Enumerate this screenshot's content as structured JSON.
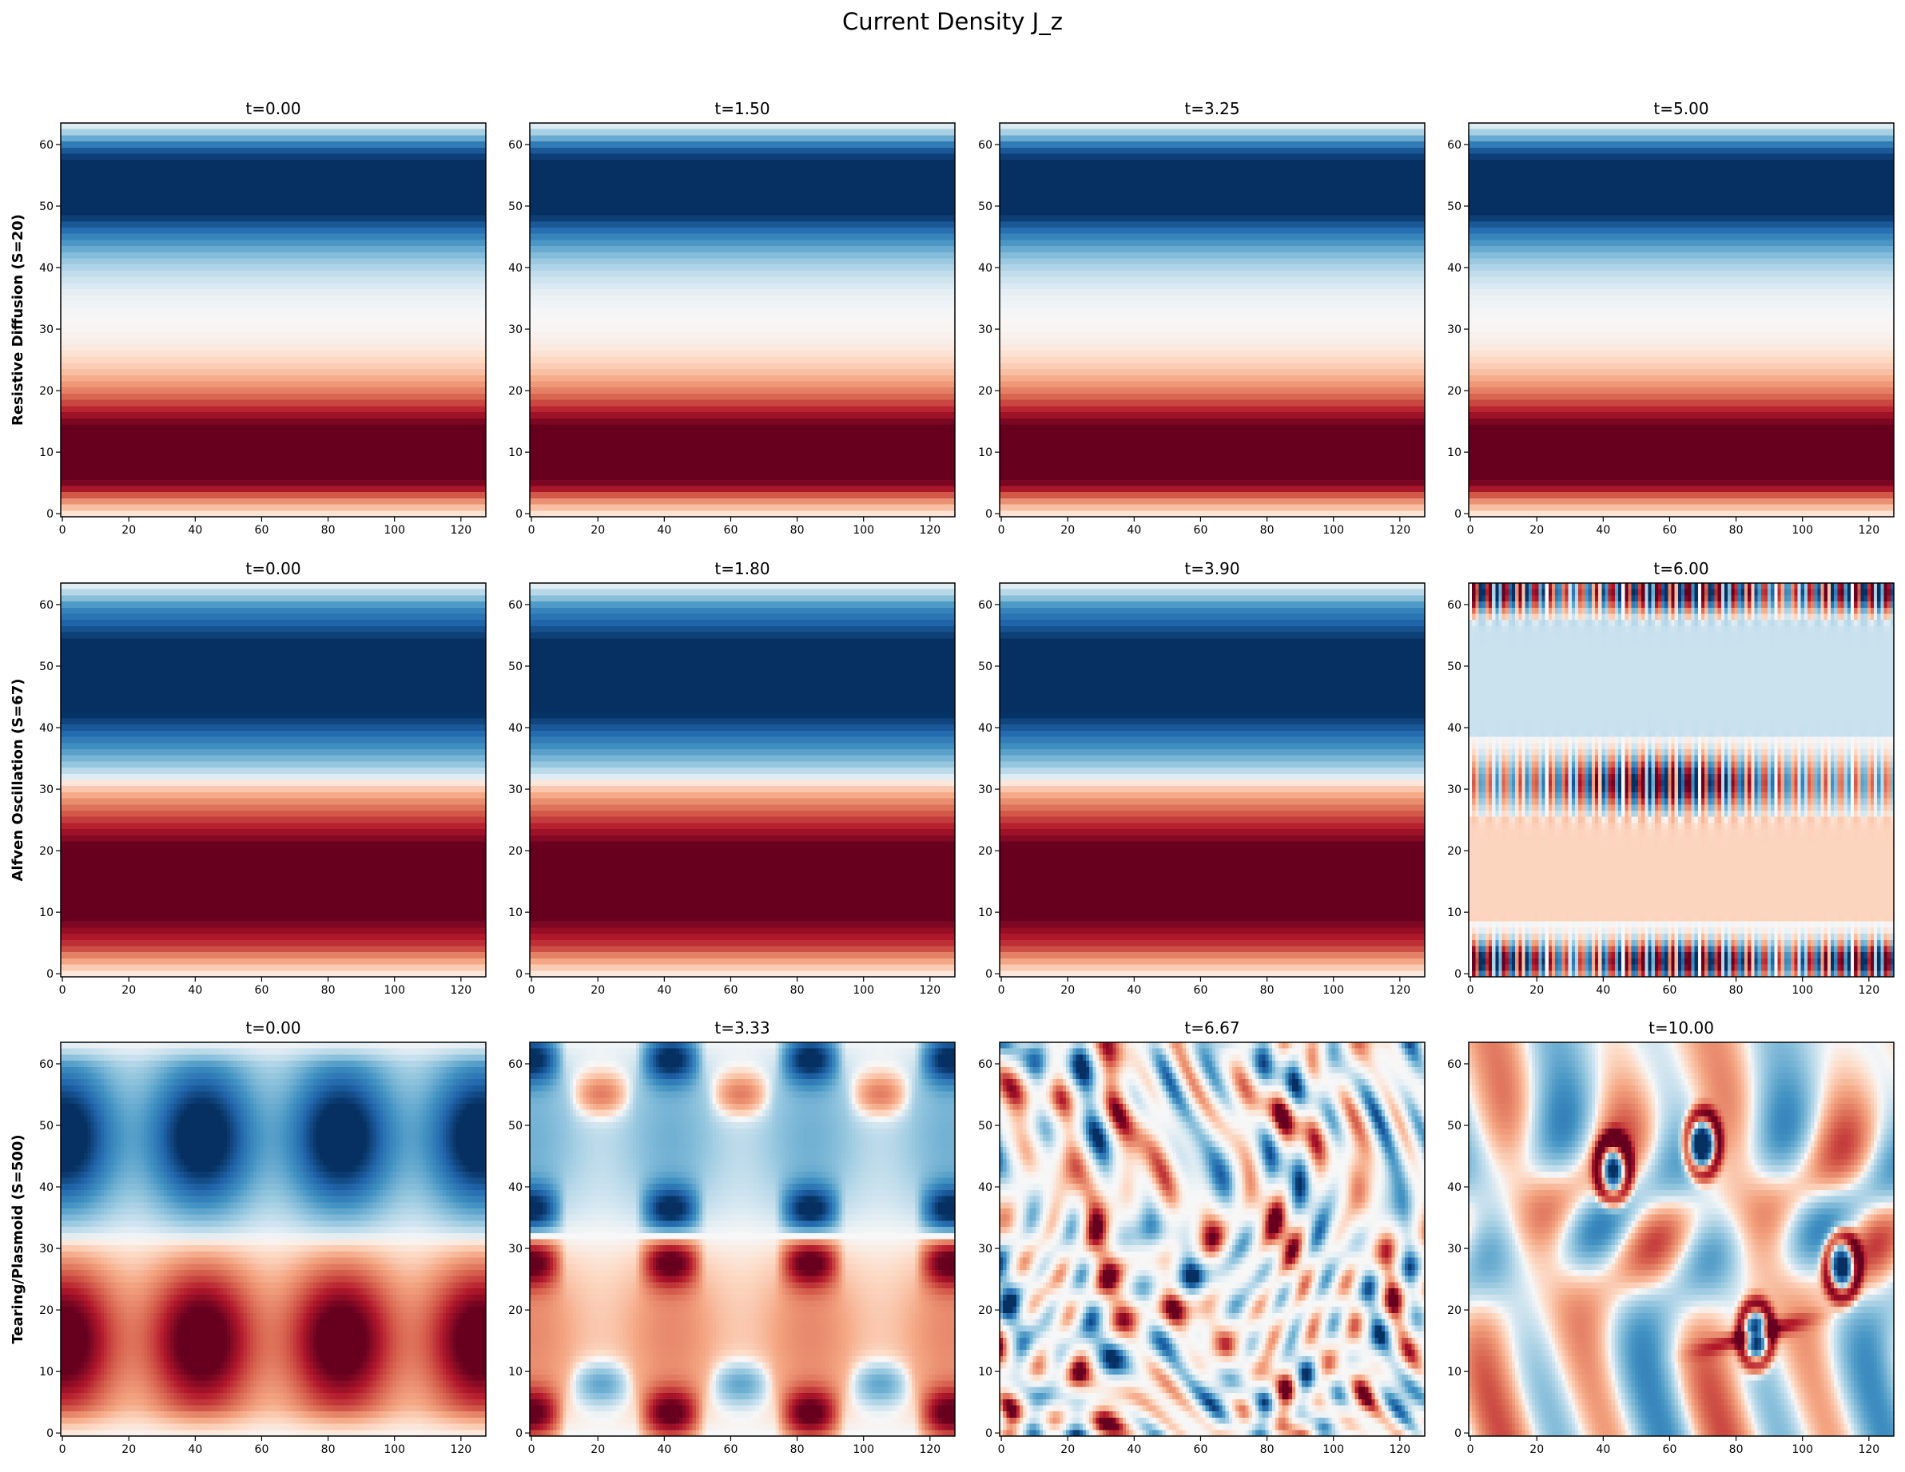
{
  "figure": {
    "title": "Current Density J_z",
    "colormap": "RdBu_r"
  },
  "rows": [
    {
      "label": "Resistive Diffusion (S=20)",
      "times": [
        "t=0.00",
        "t=1.50",
        "t=3.25",
        "t=5.00"
      ]
    },
    {
      "label": "Alfven Oscillation (S=67)",
      "times": [
        "t=0.00",
        "t=1.80",
        "t=3.90",
        "t=6.00"
      ]
    },
    {
      "label": "Tearing/Plasmoid (S=500)",
      "times": [
        "t=0.00",
        "t=3.33",
        "t=6.67",
        "t=10.00"
      ]
    }
  ],
  "chart_data": {
    "type": "heatmap",
    "title": "Current Density J_z",
    "grid": {
      "nx": 128,
      "ny": 64
    },
    "xlim": [
      0,
      127
    ],
    "ylim": [
      0,
      63
    ],
    "x_ticks": [
      "0",
      "20",
      "40",
      "60",
      "80",
      "100",
      "120"
    ],
    "y_ticks": [
      "0",
      "10",
      "20",
      "30",
      "40",
      "50",
      "60"
    ],
    "colormap": "RdBu_r",
    "panels": [
      {
        "row": 0,
        "col": 0,
        "time": "t=0.00",
        "pattern": "double-sheet",
        "red_center_y": 10,
        "blue_center_y": 53,
        "neutral_y": 32
      },
      {
        "row": 0,
        "col": 1,
        "time": "t=1.50",
        "pattern": "double-sheet",
        "red_center_y": 10,
        "blue_center_y": 53,
        "neutral_y": 31
      },
      {
        "row": 0,
        "col": 2,
        "time": "t=3.25",
        "pattern": "double-sheet",
        "red_center_y": 10,
        "blue_center_y": 53,
        "neutral_y": 33
      },
      {
        "row": 0,
        "col": 3,
        "time": "t=5.00",
        "pattern": "double-sheet",
        "red_center_y": 10,
        "blue_center_y": 53,
        "neutral_y": 33
      },
      {
        "row": 1,
        "col": 0,
        "time": "t=0.00",
        "pattern": "double-sheet",
        "red_center_y": 15,
        "blue_center_y": 48,
        "neutral_y": 32
      },
      {
        "row": 1,
        "col": 1,
        "time": "t=1.80",
        "pattern": "double-sheet",
        "red_center_y": 15,
        "blue_center_y": 48,
        "neutral_y": 32
      },
      {
        "row": 1,
        "col": 2,
        "time": "t=3.90",
        "pattern": "double-sheet",
        "red_center_y": 15,
        "blue_center_y": 48,
        "neutral_y": 32
      },
      {
        "row": 1,
        "col": 3,
        "time": "t=6.00",
        "pattern": "alfven-oscillation",
        "stripe_rows_y": [
          2,
          31,
          62
        ]
      },
      {
        "row": 2,
        "col": 0,
        "time": "t=0.00",
        "pattern": "modulated-sheet",
        "red_center_y": 15,
        "blue_center_y": 48,
        "neutral_y": 32
      },
      {
        "row": 2,
        "col": 1,
        "time": "t=3.33",
        "pattern": "tearing-islands"
      },
      {
        "row": 2,
        "col": 2,
        "time": "t=6.67",
        "pattern": "turbulent"
      },
      {
        "row": 2,
        "col": 3,
        "time": "t=10.00",
        "pattern": "plasmoids",
        "islands": [
          [
            43,
            43
          ],
          [
            112,
            27
          ],
          [
            86,
            16
          ],
          [
            70,
            47
          ]
        ]
      }
    ]
  }
}
